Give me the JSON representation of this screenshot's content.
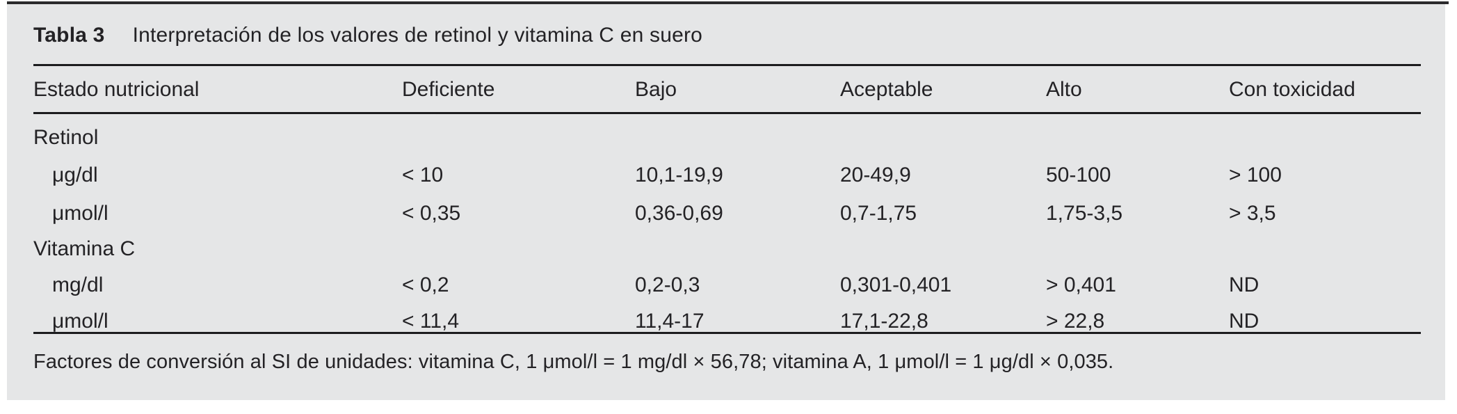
{
  "table": {
    "label": "Tabla 3",
    "title": "Interpretación de los valores de retinol y vitamina C en suero",
    "columns": [
      "Estado nutricional",
      "Deficiente",
      "Bajo",
      "Aceptable",
      "Alto",
      "Con toxicidad"
    ],
    "groups": [
      {
        "name": "Retinol",
        "rows": [
          {
            "label": "μg/dl",
            "values": [
              "< 10",
              "10,1-19,9",
              "20-49,9",
              "50-100",
              "> 100"
            ]
          },
          {
            "label": "μmol/l",
            "values": [
              "< 0,35",
              "0,36-0,69",
              "0,7-1,75",
              "1,75-3,5",
              "> 3,5"
            ]
          }
        ]
      },
      {
        "name": "Vitamina C",
        "rows": [
          {
            "label": "mg/dl",
            "values": [
              "< 0,2",
              "0,2-0,3",
              "0,301-0,401",
              "> 0,401",
              "ND"
            ]
          },
          {
            "label": "μmol/l",
            "values": [
              "< 11,4",
              "11,4-17",
              "17,1-22,8",
              "> 22,8",
              "ND"
            ]
          }
        ]
      }
    ],
    "footnote": "Factores de conversión al SI de unidades: vitamina C, 1 μmol/l = 1 mg/dl × 56,78; vitamina A, 1 μmol/l = 1 μg/dl × 0,035.",
    "colors": {
      "panel_bg": "#e5e6e7",
      "rule": "#1c1c1e",
      "text": "#232225"
    }
  }
}
